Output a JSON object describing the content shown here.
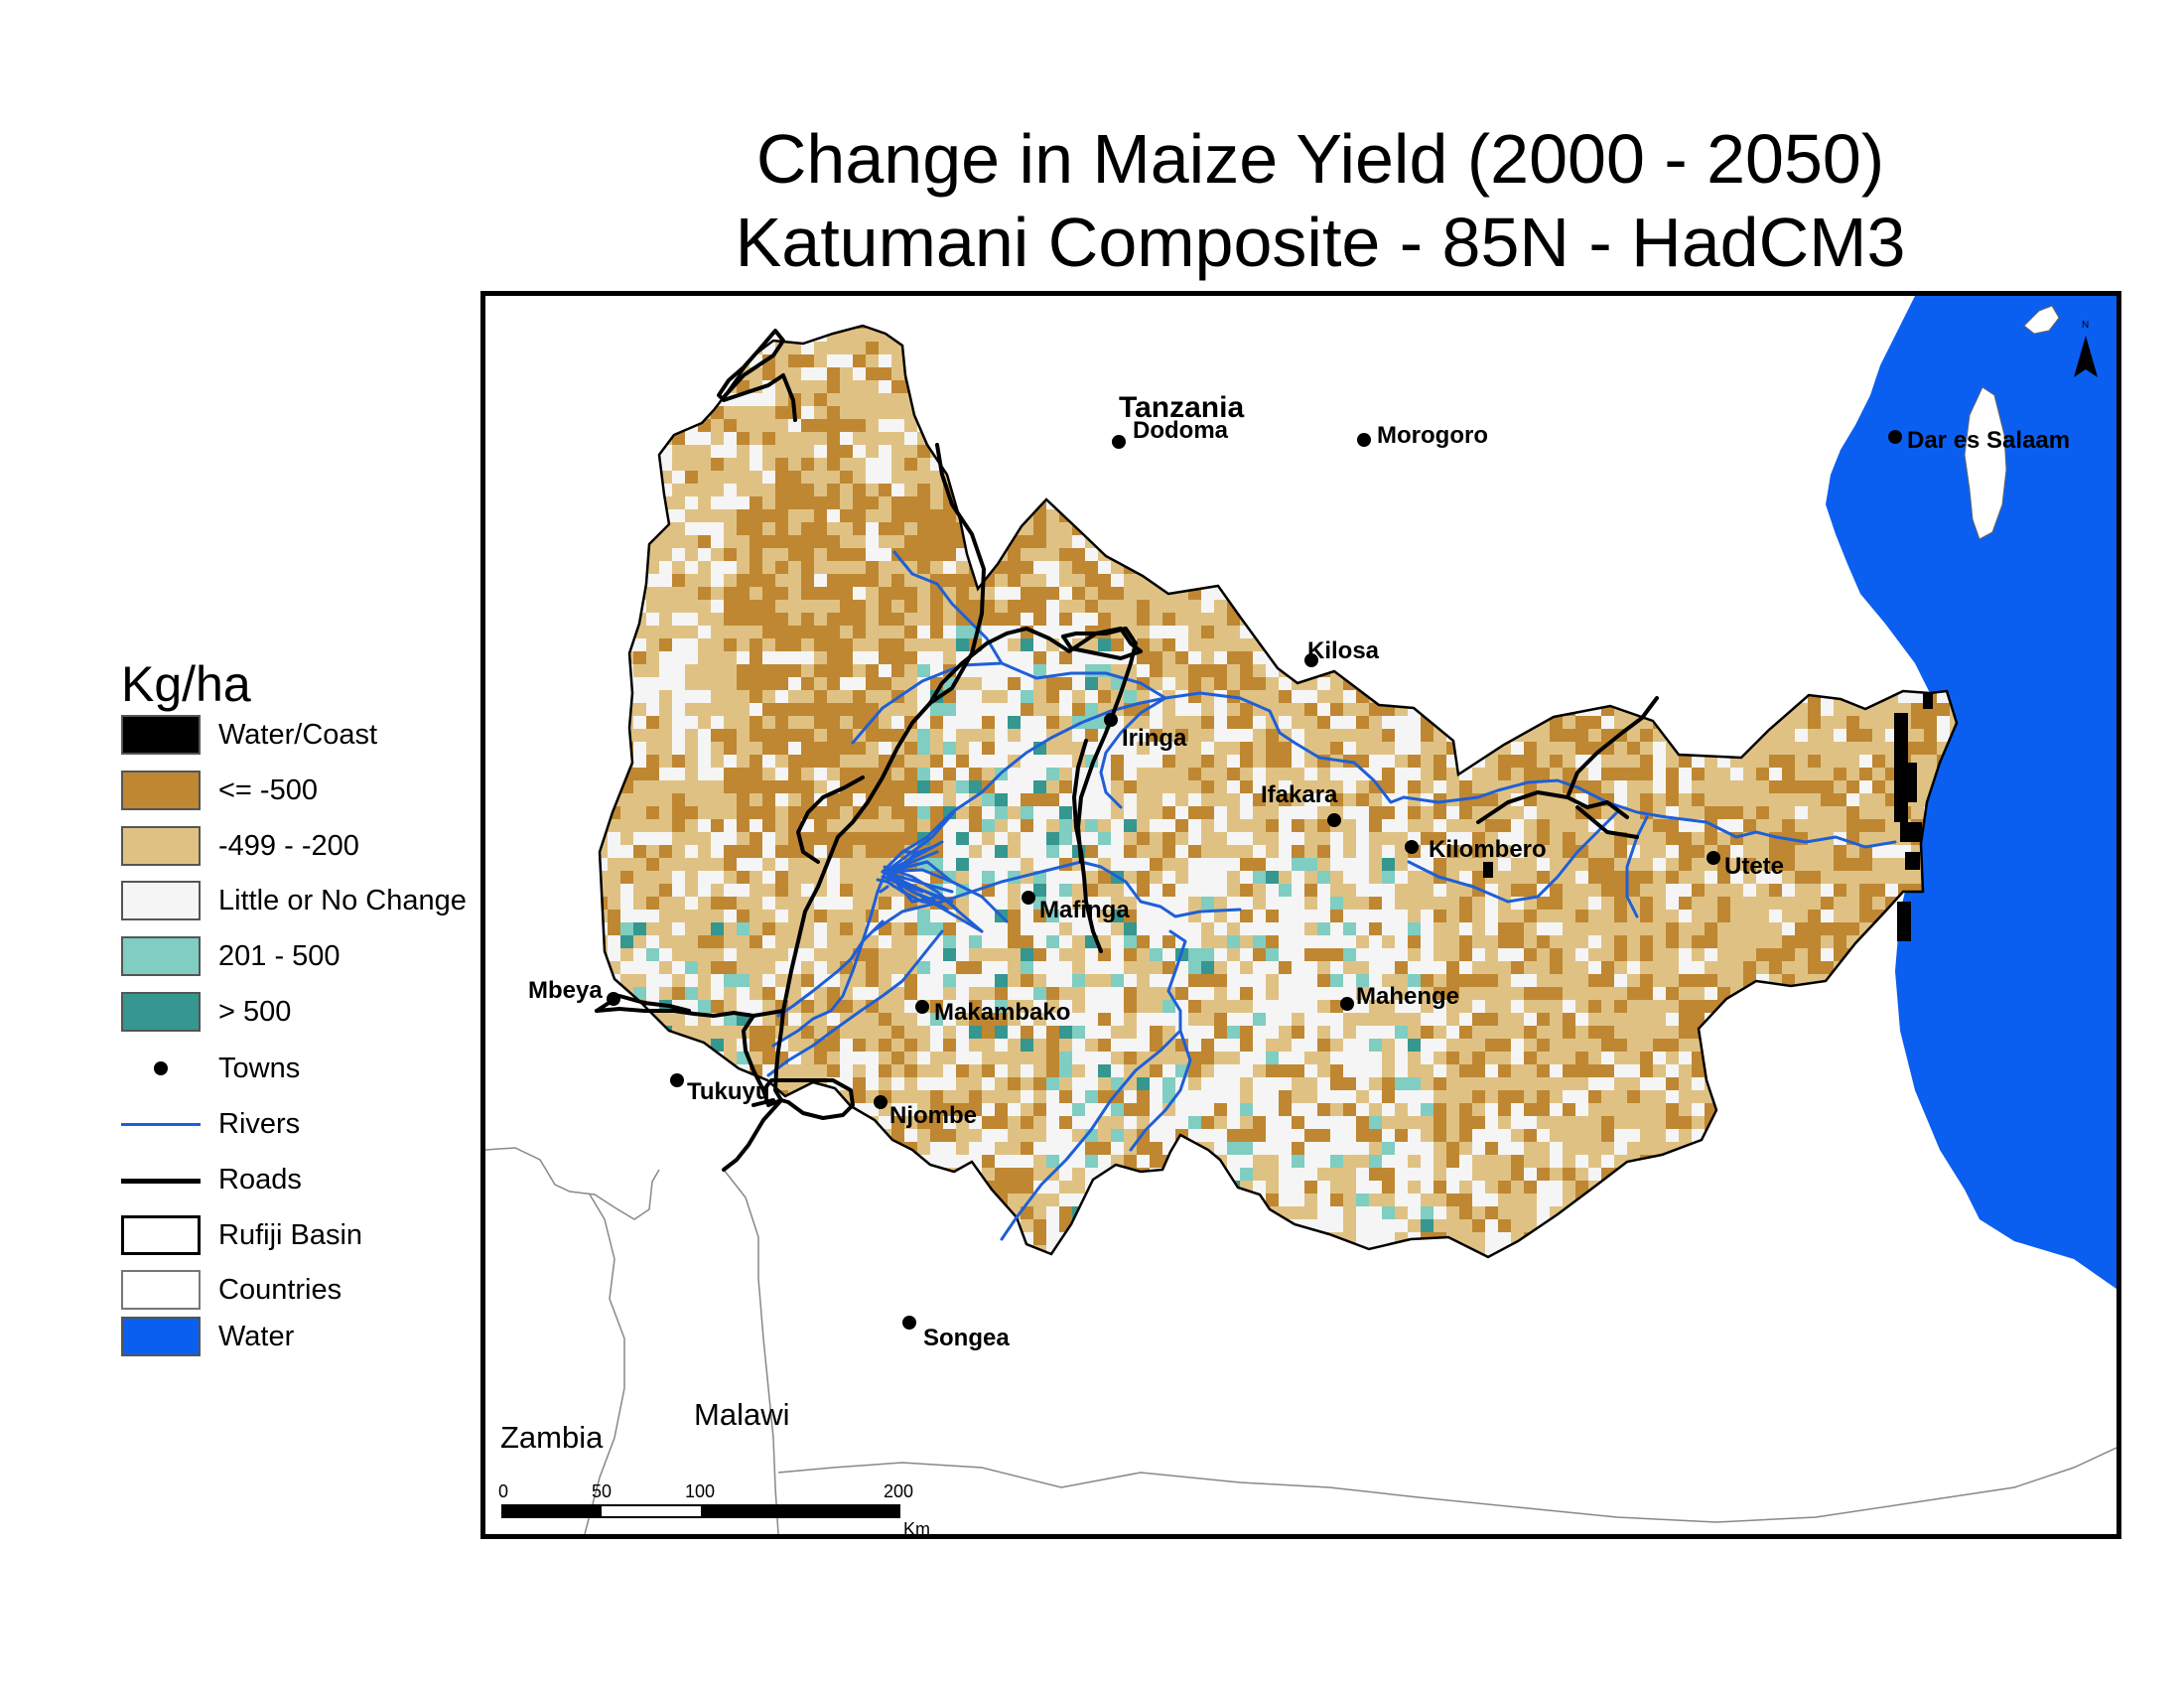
{
  "title": {
    "line1": "Change in Maize Yield (2000 - 2050)",
    "line2": "Katumani Composite - 85N - HadCM3"
  },
  "legend": {
    "heading": "Kg/ha",
    "items": [
      {
        "name": "water-coast",
        "label": "Water/Coast",
        "type": "fill",
        "color": "#000000"
      },
      {
        "name": "le-minus-500",
        "label": "<= -500",
        "type": "fill",
        "color": "#bf8732"
      },
      {
        "name": "minus-499-200",
        "label": "-499 - -200",
        "type": "fill",
        "color": "#dfc283"
      },
      {
        "name": "little-no-change",
        "label": "Little or No Change",
        "type": "fill",
        "color": "#f5f5f5"
      },
      {
        "name": "plus-201-500",
        "label": "201 - 500",
        "type": "fill",
        "color": "#80cdc1"
      },
      {
        "name": "gt-500",
        "label": "> 500",
        "type": "fill",
        "color": "#35978f"
      },
      {
        "name": "towns",
        "label": "Towns",
        "type": "dot",
        "color": "#000000"
      },
      {
        "name": "rivers",
        "label": "Rivers",
        "type": "line",
        "color": "#1f5fd6"
      },
      {
        "name": "roads",
        "label": "Roads",
        "type": "line",
        "color": "#000000"
      },
      {
        "name": "rufiji-basin",
        "label": "Rufiji Basin",
        "type": "outline",
        "color": "#ffffff"
      },
      {
        "name": "countries",
        "label": "Countries",
        "type": "outline-thin",
        "color": "#ffffff"
      },
      {
        "name": "water",
        "label": "Water",
        "type": "fill",
        "color": "#0a5ff0"
      }
    ]
  },
  "map": {
    "country_labels": {
      "tanzania": "Tanzania",
      "zambia": "Zambia",
      "malawi": "Malawi"
    },
    "towns": [
      {
        "name": "dodoma",
        "label": "Dodoma"
      },
      {
        "name": "morogoro",
        "label": "Morogoro"
      },
      {
        "name": "dar-es-salaam",
        "label": "Dar es Salaam"
      },
      {
        "name": "kilosa",
        "label": "Kilosa"
      },
      {
        "name": "iringa",
        "label": "Iringa"
      },
      {
        "name": "ifakara",
        "label": "Ifakara"
      },
      {
        "name": "kilombero",
        "label": "Kilombero"
      },
      {
        "name": "utete",
        "label": "Utete"
      },
      {
        "name": "mafinga",
        "label": "Mafinga"
      },
      {
        "name": "mahenge",
        "label": "Mahenge"
      },
      {
        "name": "mbeya",
        "label": "Mbeya"
      },
      {
        "name": "makambako",
        "label": "Makambako"
      },
      {
        "name": "tukuyu",
        "label": "Tukuyu"
      },
      {
        "name": "njombe",
        "label": "Njombe"
      },
      {
        "name": "songea",
        "label": "Songea"
      }
    ],
    "scale_bar": {
      "ticks": [
        "0",
        "50",
        "100",
        "200"
      ],
      "unit": "Km"
    },
    "north_arrow": {
      "label": "N"
    }
  }
}
